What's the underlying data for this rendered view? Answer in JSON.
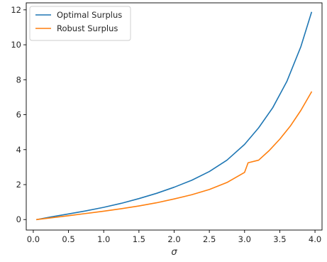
{
  "chart_data": {
    "type": "line",
    "title": "",
    "xlabel": "σ",
    "ylabel": "",
    "xlim": [
      -0.1,
      4.1
    ],
    "ylim": [
      -0.6,
      12.4
    ],
    "xticks": [
      0.0,
      0.5,
      1.0,
      1.5,
      2.0,
      2.5,
      3.0,
      3.5,
      4.0
    ],
    "xtick_labels": [
      "0.0",
      "0.5",
      "1.0",
      "1.5",
      "2.0",
      "2.5",
      "3.0",
      "3.5",
      "4.0"
    ],
    "yticks": [
      0,
      2,
      4,
      6,
      8,
      10,
      12
    ],
    "ytick_labels": [
      "0",
      "2",
      "4",
      "6",
      "8",
      "10",
      "12"
    ],
    "grid": false,
    "legend_position": "top-left",
    "series": [
      {
        "name": "Optimal Surplus",
        "color": "#1f77b4",
        "x": [
          0.05,
          0.25,
          0.5,
          0.75,
          1.0,
          1.25,
          1.5,
          1.75,
          2.0,
          2.25,
          2.5,
          2.75,
          3.0,
          3.2,
          3.4,
          3.6,
          3.8,
          3.95
        ],
        "y": [
          0.0,
          0.15,
          0.32,
          0.5,
          0.7,
          0.93,
          1.2,
          1.5,
          1.85,
          2.25,
          2.75,
          3.4,
          4.3,
          5.25,
          6.4,
          7.9,
          9.9,
          11.85
        ]
      },
      {
        "name": "Robust Surplus",
        "color": "#ff7f0e",
        "x": [
          0.05,
          0.25,
          0.5,
          0.75,
          1.0,
          1.25,
          1.5,
          1.75,
          2.0,
          2.25,
          2.5,
          2.75,
          3.0,
          3.05,
          3.2,
          3.35,
          3.5,
          3.65,
          3.8,
          3.95
        ],
        "y": [
          0.0,
          0.1,
          0.22,
          0.35,
          0.48,
          0.62,
          0.78,
          0.96,
          1.18,
          1.42,
          1.72,
          2.12,
          2.7,
          3.25,
          3.4,
          3.95,
          4.6,
          5.35,
          6.25,
          7.3
        ]
      }
    ]
  }
}
